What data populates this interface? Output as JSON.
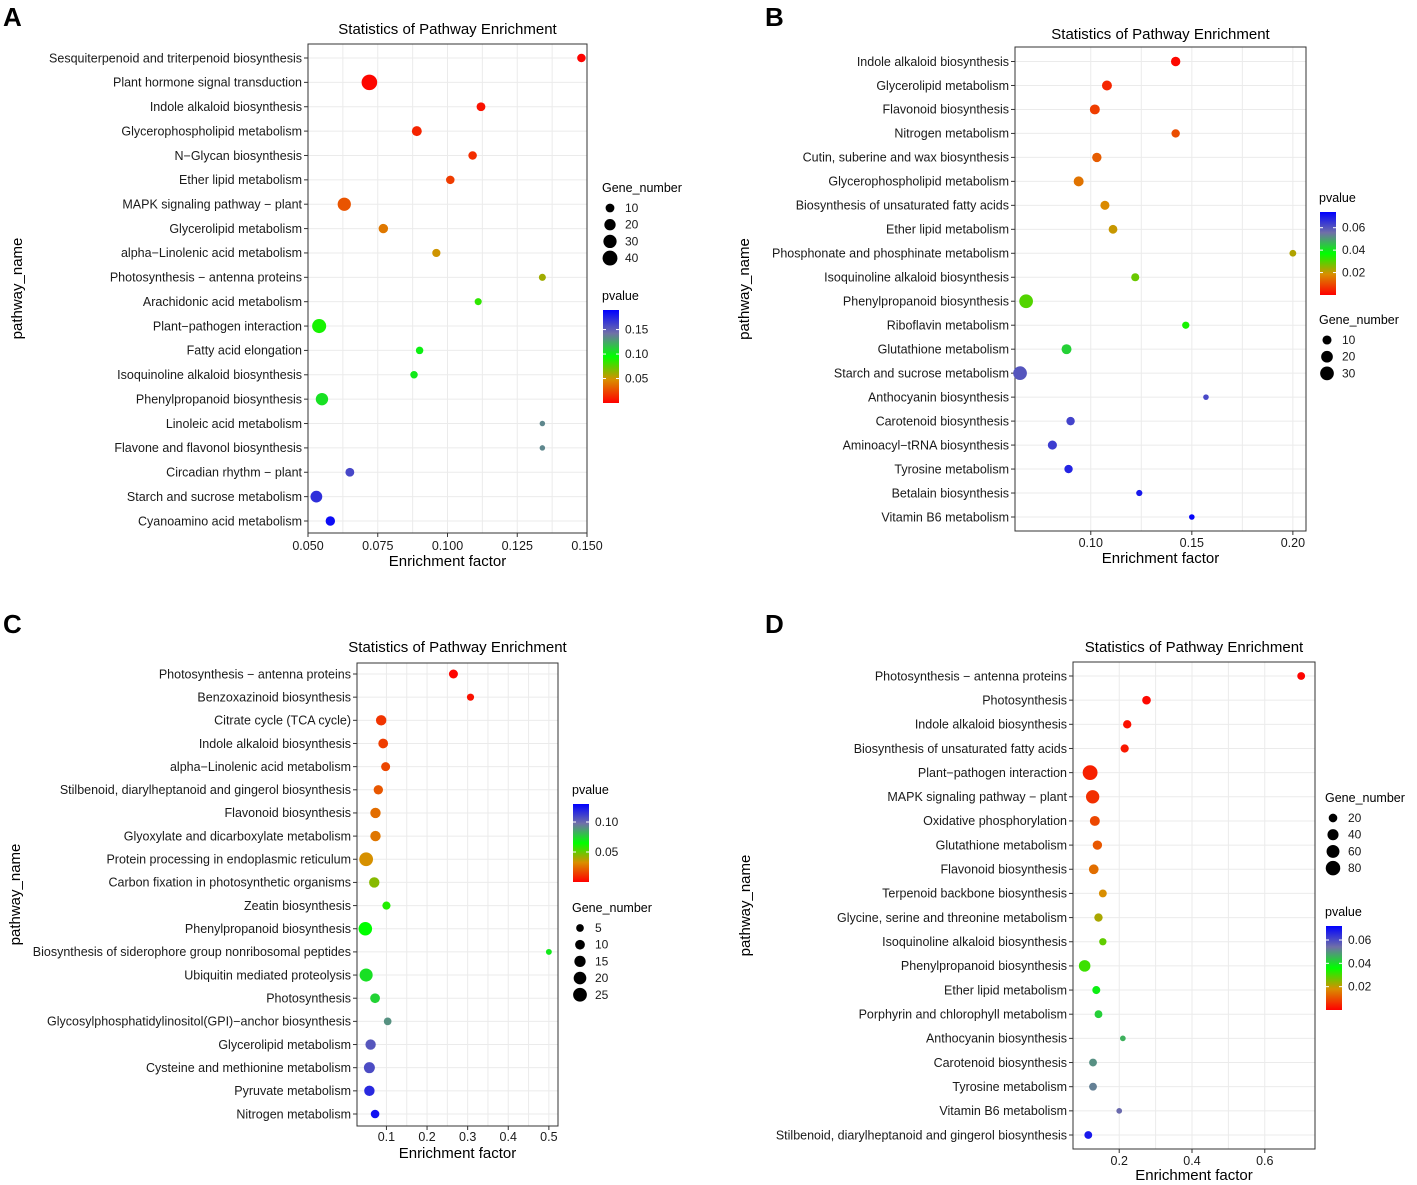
{
  "chart_data": [
    {
      "panel": "A",
      "type": "scatter",
      "title": "Statistics of Pathway Enrichment",
      "xlabel": "Enrichment factor",
      "ylabel": "pathway_name",
      "xlim": [
        0.05,
        0.15
      ],
      "xticks": [
        0.05,
        0.075,
        0.1,
        0.125,
        0.15
      ],
      "xtick_labels": [
        "0.050",
        "0.075",
        "0.100",
        "0.125",
        "0.150"
      ],
      "size_legend": {
        "title": "Gene_number",
        "values": [
          10,
          20,
          30,
          40
        ],
        "labels": [
          "10",
          "20",
          "30",
          "40"
        ],
        "max": 45
      },
      "color_legend": {
        "title": "pvalue",
        "min": 0.0,
        "max": 0.19,
        "ticks": [
          0.05,
          0.1,
          0.15
        ],
        "tick_labels": [
          "0.05",
          "0.10",
          "0.15"
        ],
        "order": "size-first"
      },
      "points": [
        {
          "pathway": "Sesquiterpenoid and triterpenoid biosynthesis",
          "x": 0.148,
          "genes": 9,
          "pvalue": 0.001
        },
        {
          "pathway": "Plant hormone signal transduction",
          "x": 0.072,
          "genes": 45,
          "pvalue": 0.002
        },
        {
          "pathway": "Indole alkaloid biosynthesis",
          "x": 0.112,
          "genes": 10,
          "pvalue": 0.006
        },
        {
          "pathway": "Glycerophospholipid metabolism",
          "x": 0.089,
          "genes": 14,
          "pvalue": 0.012
        },
        {
          "pathway": "N−Glycan biosynthesis",
          "x": 0.109,
          "genes": 9,
          "pvalue": 0.015
        },
        {
          "pathway": "Ether lipid metabolism",
          "x": 0.101,
          "genes": 9,
          "pvalue": 0.02
        },
        {
          "pathway": "MAPK signaling pathway − plant",
          "x": 0.063,
          "genes": 30,
          "pvalue": 0.028
        },
        {
          "pathway": "Glycerolipid metabolism",
          "x": 0.077,
          "genes": 12,
          "pvalue": 0.04
        },
        {
          "pathway": "alpha−Linolenic acid metabolism",
          "x": 0.096,
          "genes": 8,
          "pvalue": 0.05
        },
        {
          "pathway": "Photosynthesis − antenna proteins",
          "x": 0.134,
          "genes": 5,
          "pvalue": 0.06
        },
        {
          "pathway": "Arachidonic acid metabolism",
          "x": 0.111,
          "genes": 5,
          "pvalue": 0.085
        },
        {
          "pathway": "Plant−pathogen interaction",
          "x": 0.054,
          "genes": 35,
          "pvalue": 0.09
        },
        {
          "pathway": "Fatty acid elongation",
          "x": 0.09,
          "genes": 6,
          "pvalue": 0.1
        },
        {
          "pathway": "Isoquinoline alkaloid biosynthesis",
          "x": 0.088,
          "genes": 6,
          "pvalue": 0.102
        },
        {
          "pathway": "Phenylpropanoid biosynthesis",
          "x": 0.055,
          "genes": 25,
          "pvalue": 0.105
        },
        {
          "pathway": "Linoleic acid metabolism",
          "x": 0.134,
          "genes": 2,
          "pvalue": 0.135
        },
        {
          "pathway": "Flavone and flavonol biosynthesis",
          "x": 0.134,
          "genes": 2,
          "pvalue": 0.135
        },
        {
          "pathway": "Circadian rhythm − plant",
          "x": 0.065,
          "genes": 10,
          "pvalue": 0.16
        },
        {
          "pathway": "Starch and sucrose metabolism",
          "x": 0.053,
          "genes": 22,
          "pvalue": 0.17
        },
        {
          "pathway": "Cyanoamino acid metabolism",
          "x": 0.058,
          "genes": 12,
          "pvalue": 0.185
        }
      ]
    },
    {
      "panel": "B",
      "type": "scatter",
      "title": "Statistics of Pathway Enrichment",
      "xlabel": "Enrichment factor",
      "ylabel": "pathway_name",
      "xlim": [
        0.0625,
        0.2065
      ],
      "xticks": [
        0.1,
        0.15,
        0.2
      ],
      "xtick_labels": [
        "0.10",
        "0.15",
        "0.20"
      ],
      "size_legend": {
        "title": "Gene_number",
        "values": [
          10,
          20,
          30
        ],
        "labels": [
          "10",
          "20",
          "30"
        ],
        "max": 34
      },
      "color_legend": {
        "title": "pvalue",
        "min": 0.0,
        "max": 0.074,
        "ticks": [
          0.02,
          0.04,
          0.06
        ],
        "tick_labels": [
          "0.02",
          "0.04",
          "0.06"
        ],
        "order": "color-first"
      },
      "points": [
        {
          "pathway": "Indole alkaloid biosynthesis",
          "x": 0.142,
          "genes": 11,
          "pvalue": 0.001
        },
        {
          "pathway": "Glycerolipid metabolism",
          "x": 0.108,
          "genes": 13,
          "pvalue": 0.005
        },
        {
          "pathway": "Flavonoid biosynthesis",
          "x": 0.102,
          "genes": 13,
          "pvalue": 0.008
        },
        {
          "pathway": "Nitrogen metabolism",
          "x": 0.142,
          "genes": 8,
          "pvalue": 0.01
        },
        {
          "pathway": "Cutin, suberine and wax biosynthesis",
          "x": 0.103,
          "genes": 11,
          "pvalue": 0.012
        },
        {
          "pathway": "Glycerophospholipid metabolism",
          "x": 0.094,
          "genes": 13,
          "pvalue": 0.015
        },
        {
          "pathway": "Biosynthesis of unsaturated fatty acids",
          "x": 0.107,
          "genes": 10,
          "pvalue": 0.018
        },
        {
          "pathway": "Ether lipid metabolism",
          "x": 0.111,
          "genes": 9,
          "pvalue": 0.02
        },
        {
          "pathway": "Phosphonate and phosphinate metabolism",
          "x": 0.2,
          "genes": 4,
          "pvalue": 0.022
        },
        {
          "pathway": "Isoquinoline alkaloid biosynthesis",
          "x": 0.122,
          "genes": 7,
          "pvalue": 0.028
        },
        {
          "pathway": "Phenylpropanoid biosynthesis",
          "x": 0.068,
          "genes": 30,
          "pvalue": 0.03
        },
        {
          "pathway": "Riboflavin metabolism",
          "x": 0.147,
          "genes": 5,
          "pvalue": 0.035
        },
        {
          "pathway": "Glutathione metabolism",
          "x": 0.088,
          "genes": 13,
          "pvalue": 0.043
        },
        {
          "pathway": "Starch and sucrose metabolism",
          "x": 0.065,
          "genes": 30,
          "pvalue": 0.06
        },
        {
          "pathway": "Anthocyanin biosynthesis",
          "x": 0.157,
          "genes": 2,
          "pvalue": 0.062
        },
        {
          "pathway": "Carotenoid biosynthesis",
          "x": 0.09,
          "genes": 8,
          "pvalue": 0.063
        },
        {
          "pathway": "Aminoacyl−tRNA biosynthesis",
          "x": 0.081,
          "genes": 10,
          "pvalue": 0.064
        },
        {
          "pathway": "Tyrosine metabolism",
          "x": 0.089,
          "genes": 8,
          "pvalue": 0.068
        },
        {
          "pathway": "Betalain biosynthesis",
          "x": 0.124,
          "genes": 3,
          "pvalue": 0.07
        },
        {
          "pathway": "Vitamin B6 metabolism",
          "x": 0.15,
          "genes": 2,
          "pvalue": 0.073
        }
      ]
    },
    {
      "panel": "C",
      "type": "scatter",
      "title": "Statistics of Pathway Enrichment",
      "xlabel": "Enrichment factor",
      "ylabel": "pathway_name",
      "xlim": [
        0.0275,
        0.5225
      ],
      "xticks": [
        0.1,
        0.2,
        0.3,
        0.4,
        0.5
      ],
      "xtick_labels": [
        "0.1",
        "0.2",
        "0.3",
        "0.4",
        "0.5"
      ],
      "size_legend": {
        "title": "Gene_number",
        "values": [
          5,
          10,
          15,
          20,
          25
        ],
        "labels": [
          "5",
          "10",
          "15",
          "20",
          "25"
        ],
        "max": 28
      },
      "color_legend": {
        "title": "pvalue",
        "min": 0.0,
        "max": 0.13,
        "ticks": [
          0.05,
          0.1
        ],
        "tick_labels": [
          "0.05",
          "0.10"
        ],
        "order": "color-first"
      },
      "points": [
        {
          "pathway": "Photosynthesis − antenna proteins",
          "x": 0.265,
          "genes": 8,
          "pvalue": 0.001
        },
        {
          "pathway": "Benzoxazinoid biosynthesis",
          "x": 0.307,
          "genes": 4,
          "pvalue": 0.004
        },
        {
          "pathway": "Citrate cycle (TCA cycle)",
          "x": 0.087,
          "genes": 12,
          "pvalue": 0.012
        },
        {
          "pathway": "Indole alkaloid biosynthesis",
          "x": 0.092,
          "genes": 10,
          "pvalue": 0.014
        },
        {
          "pathway": "alpha−Linolenic acid metabolism",
          "x": 0.098,
          "genes": 8,
          "pvalue": 0.016
        },
        {
          "pathway": "Stilbenoid, diarylheptanoid and gingerol biosynthesis",
          "x": 0.08,
          "genes": 9,
          "pvalue": 0.02
        },
        {
          "pathway": "Flavonoid biosynthesis",
          "x": 0.073,
          "genes": 12,
          "pvalue": 0.025
        },
        {
          "pathway": "Glyoxylate and dicarboxylate metabolism",
          "x": 0.073,
          "genes": 12,
          "pvalue": 0.027
        },
        {
          "pathway": "Protein processing in endoplasmic reticulum",
          "x": 0.05,
          "genes": 25,
          "pvalue": 0.033
        },
        {
          "pathway": "Carbon fixation in photosynthetic organisms",
          "x": 0.07,
          "genes": 12,
          "pvalue": 0.045
        },
        {
          "pathway": "Zeatin biosynthesis",
          "x": 0.1,
          "genes": 6,
          "pvalue": 0.06
        },
        {
          "pathway": "Phenylpropanoid biosynthesis",
          "x": 0.048,
          "genes": 24,
          "pvalue": 0.065
        },
        {
          "pathway": "Biosynthesis of siderophore group nonribosomal peptides",
          "x": 0.5,
          "genes": 2,
          "pvalue": 0.07
        },
        {
          "pathway": "Ubiquitin mediated proteolysis",
          "x": 0.05,
          "genes": 22,
          "pvalue": 0.072
        },
        {
          "pathway": "Photosynthesis",
          "x": 0.072,
          "genes": 10,
          "pvalue": 0.075
        },
        {
          "pathway": "Glycosylphosphatidylinositol(GPI)−anchor biosynthesis",
          "x": 0.103,
          "genes": 5,
          "pvalue": 0.09
        },
        {
          "pathway": "Glycerolipid metabolism",
          "x": 0.061,
          "genes": 12,
          "pvalue": 0.105
        },
        {
          "pathway": "Cysteine and methionine metabolism",
          "x": 0.058,
          "genes": 14,
          "pvalue": 0.108
        },
        {
          "pathway": "Pyruvate metabolism",
          "x": 0.058,
          "genes": 12,
          "pvalue": 0.118
        },
        {
          "pathway": "Nitrogen metabolism",
          "x": 0.072,
          "genes": 7,
          "pvalue": 0.125
        }
      ]
    },
    {
      "panel": "D",
      "type": "scatter",
      "title": "Statistics of Pathway Enrichment",
      "xlabel": "Enrichment factor",
      "ylabel": "pathway_name",
      "xlim": [
        0.073,
        0.738
      ],
      "xticks": [
        0.2,
        0.4,
        0.6
      ],
      "xtick_labels": [
        "0.2",
        "0.4",
        "0.6"
      ],
      "size_legend": {
        "title": "Gene_number",
        "values": [
          20,
          40,
          60,
          80
        ],
        "labels": [
          "20",
          "40",
          "60",
          "80"
        ],
        "max": 90
      },
      "color_legend": {
        "title": "pvalue",
        "min": 0.0,
        "max": 0.072,
        "ticks": [
          0.02,
          0.04,
          0.06
        ],
        "tick_labels": [
          "0.02",
          "0.04",
          "0.06"
        ],
        "order": "size-first"
      },
      "points": [
        {
          "pathway": "Photosynthesis − antenna proteins",
          "x": 0.7,
          "genes": 15,
          "pvalue": 0.0005
        },
        {
          "pathway": "Photosynthesis",
          "x": 0.275,
          "genes": 20,
          "pvalue": 0.001
        },
        {
          "pathway": "Indole alkaloid biosynthesis",
          "x": 0.222,
          "genes": 18,
          "pvalue": 0.002
        },
        {
          "pathway": "Biosynthesis of unsaturated fatty acids",
          "x": 0.215,
          "genes": 17,
          "pvalue": 0.003
        },
        {
          "pathway": "Plant−pathogen interaction",
          "x": 0.12,
          "genes": 85,
          "pvalue": 0.004
        },
        {
          "pathway": "MAPK signaling pathway − plant",
          "x": 0.127,
          "genes": 65,
          "pvalue": 0.006
        },
        {
          "pathway": "Oxidative phosphorylation",
          "x": 0.133,
          "genes": 30,
          "pvalue": 0.009
        },
        {
          "pathway": "Glutathione metabolism",
          "x": 0.14,
          "genes": 25,
          "pvalue": 0.011
        },
        {
          "pathway": "Flavonoid biosynthesis",
          "x": 0.13,
          "genes": 28,
          "pvalue": 0.014
        },
        {
          "pathway": "Terpenoid backbone biosynthesis",
          "x": 0.155,
          "genes": 15,
          "pvalue": 0.018
        },
        {
          "pathway": "Glycine, serine and threonine metabolism",
          "x": 0.143,
          "genes": 18,
          "pvalue": 0.022
        },
        {
          "pathway": "Isoquinoline alkaloid biosynthesis",
          "x": 0.155,
          "genes": 12,
          "pvalue": 0.028
        },
        {
          "pathway": "Phenylpropanoid biosynthesis",
          "x": 0.105,
          "genes": 45,
          "pvalue": 0.031
        },
        {
          "pathway": "Ether lipid metabolism",
          "x": 0.137,
          "genes": 16,
          "pvalue": 0.038
        },
        {
          "pathway": "Porphyrin and chlorophyll metabolism",
          "x": 0.143,
          "genes": 15,
          "pvalue": 0.042
        },
        {
          "pathway": "Anthocyanin biosynthesis",
          "x": 0.21,
          "genes": 5,
          "pvalue": 0.046
        },
        {
          "pathway": "Carotenoid biosynthesis",
          "x": 0.128,
          "genes": 15,
          "pvalue": 0.05
        },
        {
          "pathway": "Tyrosine metabolism",
          "x": 0.128,
          "genes": 15,
          "pvalue": 0.052
        },
        {
          "pathway": "Vitamin B6 metabolism",
          "x": 0.2,
          "genes": 5,
          "pvalue": 0.055
        },
        {
          "pathway": "Stilbenoid, diarylheptanoid and gingerol biosynthesis",
          "x": 0.115,
          "genes": 15,
          "pvalue": 0.068
        }
      ]
    }
  ]
}
